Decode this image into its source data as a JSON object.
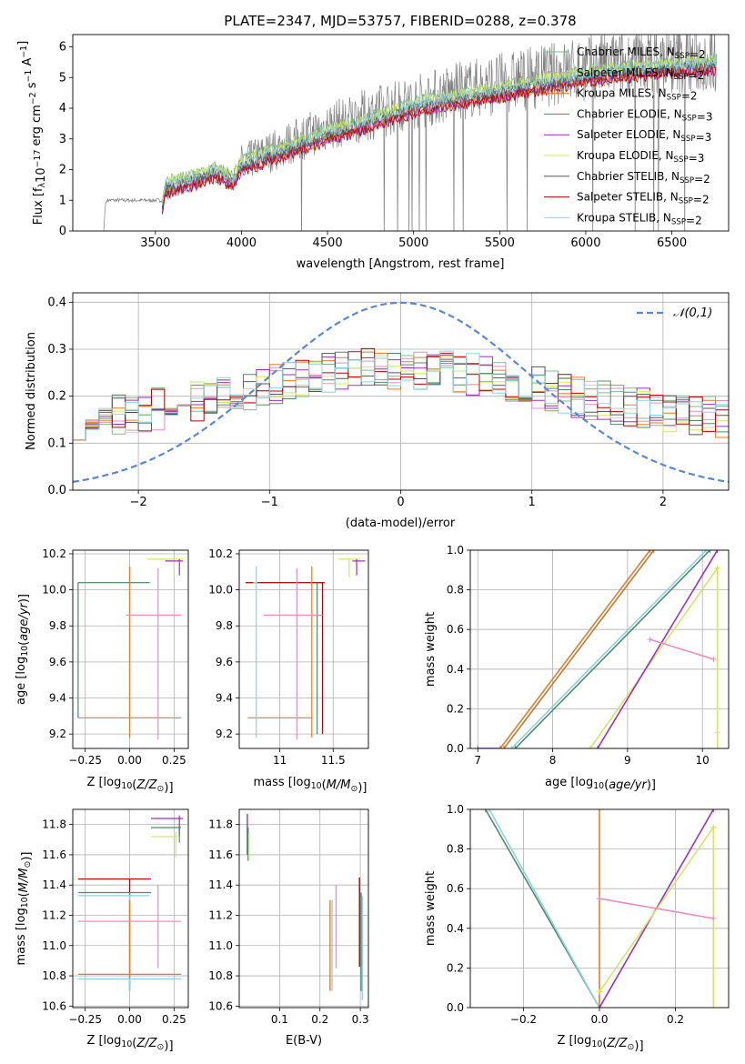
{
  "figure_title": "PLATE=2347, MJD=53757, FIBERID=0288, z=0.378",
  "models": [
    {
      "name": "Chabrier MILES",
      "nssp": "2",
      "color": "#7dbb8c"
    },
    {
      "name": "Salpeter MILES",
      "nssp": "2",
      "color": "#e88dc0"
    },
    {
      "name": "Kroupa MILES",
      "nssp": "2",
      "color": "#e57b26"
    },
    {
      "name": "Chabrier ELODIE",
      "nssp": "3",
      "color": "#4f8a68"
    },
    {
      "name": "Salpeter ELODIE",
      "nssp": "3",
      "color": "#9a2fc0"
    },
    {
      "name": "Kroupa ELODIE",
      "nssp": "3",
      "color": "#cfe861"
    },
    {
      "name": "Chabrier STELIB",
      "nssp": "2",
      "color": "#555555"
    },
    {
      "name": "Salpeter STELIB",
      "nssp": "2",
      "color": "#b80000"
    },
    {
      "name": "Kroupa STELIB",
      "nssp": "2",
      "color": "#8fd1e0"
    }
  ],
  "chart_data": [
    {
      "id": "spectrum",
      "type": "line",
      "title": "PLATE=2347, MJD=53757, FIBERID=0288, z=0.378",
      "xlabel": "wavelength [Angstrom, rest frame]",
      "ylabel": "Flux [f_λ 10^-17 erg cm^-2 s^-1 A^-1]",
      "xlim": [
        3020,
        6830
      ],
      "ylim": [
        0,
        6.4
      ],
      "xticks": [
        3500,
        4000,
        4500,
        5000,
        5500,
        6000,
        6500
      ],
      "yticks": [
        0,
        1,
        2,
        3,
        4,
        5,
        6
      ],
      "data_color": "#808080",
      "data_trend": {
        "x": [
          3200,
          3210,
          3220,
          3540,
          3560,
          3700,
          3850,
          3950,
          4000,
          4300,
          4500,
          4800,
          5000,
          5300,
          5600,
          5800,
          6000,
          6300,
          6760
        ],
        "y": [
          0,
          0.9,
          1.0,
          1.0,
          1.3,
          1.6,
          1.9,
          1.6,
          2.2,
          2.9,
          3.4,
          3.9,
          4.2,
          4.6,
          4.9,
          5.1,
          5.3,
          5.5,
          5.6
        ]
      },
      "model_trend": {
        "x": [
          3540,
          3560,
          3700,
          3850,
          3950,
          4000,
          4300,
          4500,
          4800,
          5000,
          5300,
          5600,
          5800,
          6000,
          6300,
          6760
        ],
        "y": [
          0.8,
          1.3,
          1.5,
          1.8,
          1.5,
          2.0,
          2.6,
          3.0,
          3.5,
          3.9,
          4.2,
          4.5,
          4.7,
          4.9,
          5.1,
          5.3
        ]
      },
      "legend": "top-right"
    },
    {
      "id": "residuals",
      "type": "line",
      "xlabel": "(data-model)/error",
      "ylabel": "Normed distribution",
      "xlim": [
        -2.5,
        2.5
      ],
      "ylim": [
        0,
        0.42
      ],
      "xticks": [
        -2,
        -1,
        0,
        1,
        2
      ],
      "yticks": [
        0.0,
        0.1,
        0.2,
        0.3,
        0.4
      ],
      "grid": true,
      "reference": {
        "name": "𝒩(0,1)",
        "mean": 0,
        "sigma": 1,
        "color": "#5b86d6"
      },
      "legend": "top-right"
    },
    {
      "id": "age_vs_Z",
      "type": "scatter",
      "xlabel": "Z [log10(Z/Z⊙)]",
      "ylabel": "age [log10(age/yr)]",
      "xlim": [
        -0.32,
        0.33
      ],
      "ylim": [
        9.12,
        10.22
      ],
      "xticks": [
        -0.25,
        0.0,
        0.25
      ],
      "xticklabels": [
        "−0.25",
        "0.00",
        "0.25"
      ],
      "yticks": [
        9.2,
        9.4,
        9.6,
        9.8,
        10.0,
        10.2
      ],
      "grid": true
    },
    {
      "id": "age_vs_mass",
      "type": "scatter",
      "xlabel": "mass [log10(M/M⊙)]",
      "xlim": [
        10.62,
        11.83
      ],
      "ylim": [
        9.12,
        10.22
      ],
      "xticks": [
        11.0,
        11.5
      ],
      "yticks": [
        9.2,
        9.4,
        9.6,
        9.8,
        10.0,
        10.2
      ],
      "grid": true
    },
    {
      "id": "cdf_age",
      "type": "line",
      "xlabel": "age [log10(age/yr)]",
      "ylabel": "mass weight",
      "xlim": [
        6.9,
        10.35
      ],
      "ylim": [
        0,
        1.0
      ],
      "xticks": [
        7,
        8,
        9,
        10
      ],
      "yticks": [
        0.0,
        0.2,
        0.4,
        0.6,
        0.8,
        1.0
      ],
      "grid": true
    },
    {
      "id": "mass_vs_Z",
      "type": "scatter",
      "xlabel": "Z [log10(Z/Z⊙)]",
      "ylabel": "mass [log10(M/M⊙)]",
      "xlim": [
        -0.32,
        0.33
      ],
      "ylim": [
        10.59,
        11.9
      ],
      "xticks": [
        -0.25,
        0.0,
        0.25
      ],
      "xticklabels": [
        "−0.25",
        "0.00",
        "0.25"
      ],
      "yticks": [
        10.6,
        10.8,
        11.0,
        11.2,
        11.4,
        11.6,
        11.8
      ],
      "grid": true
    },
    {
      "id": "mass_vs_ebv",
      "type": "scatter",
      "xlabel": "E(B-V)",
      "xlim": [
        0.0,
        0.32
      ],
      "ylim": [
        10.59,
        11.9
      ],
      "xticks": [
        0.1,
        0.2,
        0.3
      ],
      "yticks": [
        10.6,
        10.8,
        11.0,
        11.2,
        11.4,
        11.6,
        11.8
      ],
      "grid": true
    },
    {
      "id": "cdf_Z",
      "type": "line",
      "xlabel": "Z [log10(Z/Z⊙)]",
      "ylabel": "mass weight",
      "xlim": [
        -0.34,
        0.34
      ],
      "ylim": [
        0,
        1.0
      ],
      "xticks": [
        -0.2,
        0.0,
        0.2
      ],
      "xticklabels": [
        "−0.2",
        "0.0",
        "0.2"
      ],
      "yticks": [
        0.0,
        0.2,
        0.4,
        0.6,
        0.8,
        1.0
      ],
      "grid": true
    }
  ]
}
